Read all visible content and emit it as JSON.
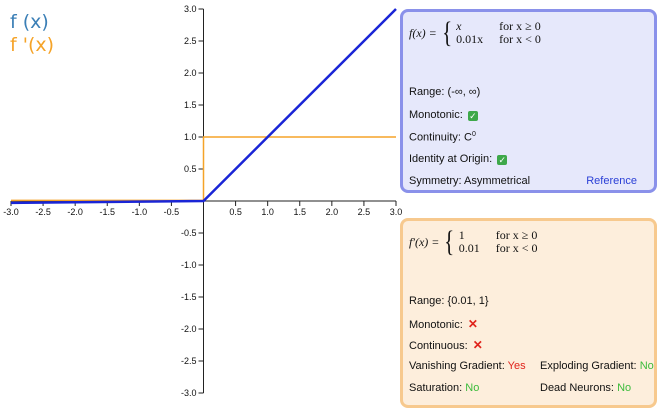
{
  "legend": {
    "f": "f (x)",
    "fp": "f '(x)"
  },
  "colors": {
    "f_line": "#1a25d6",
    "fp_line": "#f5a328",
    "legend_f": "#3b7fb6",
    "legend_fp": "#f5a328"
  },
  "axes": {
    "x_ticks": [
      "-3.0",
      "-2.5",
      "-2.0",
      "-1.5",
      "-1.0",
      "-0.5",
      "0.5",
      "1.0",
      "1.5",
      "2.0",
      "2.5",
      "3.0"
    ],
    "y_ticks": [
      "3.0",
      "2.5",
      "2.0",
      "1.5",
      "1.0",
      "0.5",
      "-0.5",
      "-1.0",
      "-1.5",
      "-2.0",
      "-2.5",
      "-3.0"
    ]
  },
  "chart_data": {
    "type": "line",
    "xlim": [
      -3,
      3
    ],
    "ylim": [
      -3,
      3
    ],
    "series": [
      {
        "name": "f (x)",
        "x": [
          -3,
          0,
          3
        ],
        "y": [
          -0.03,
          0,
          3
        ]
      },
      {
        "name": "f '(x)",
        "x": [
          -3,
          0,
          0,
          3
        ],
        "y": [
          0.01,
          0.01,
          1,
          1
        ]
      }
    ],
    "grid": false
  },
  "panel_f": {
    "formula_lhs": "f(x) =",
    "case1_expr": "x",
    "case1_cond": "for x ≥ 0",
    "case2_expr": "0.01x",
    "case2_cond": "for x < 0",
    "range": "Range: (-∞, ∞)",
    "monotonic": "Monotonic:",
    "continuity": "Continuity: C",
    "continuity_sup": "0",
    "identity": "Identity at Origin:",
    "symmetry": "Symmetry: Asymmetrical",
    "reference": "Reference"
  },
  "panel_fp": {
    "formula_lhs": "f′(x) =",
    "case1_expr": "1",
    "case1_cond": "for x ≥ 0",
    "case2_expr": "0.01",
    "case2_cond": "for x < 0",
    "range": "Range: {0.01, 1}",
    "monotonic": "Monotonic:",
    "continuous": "Continuous:",
    "vanishing_label": "Vanishing Gradient:",
    "vanishing_value": "Yes",
    "exploding_label": "Exploding Gradient:",
    "exploding_value": "No",
    "saturation_label": "Saturation:",
    "saturation_value": "No",
    "dead_label": "Dead Neurons:",
    "dead_value": "No"
  }
}
